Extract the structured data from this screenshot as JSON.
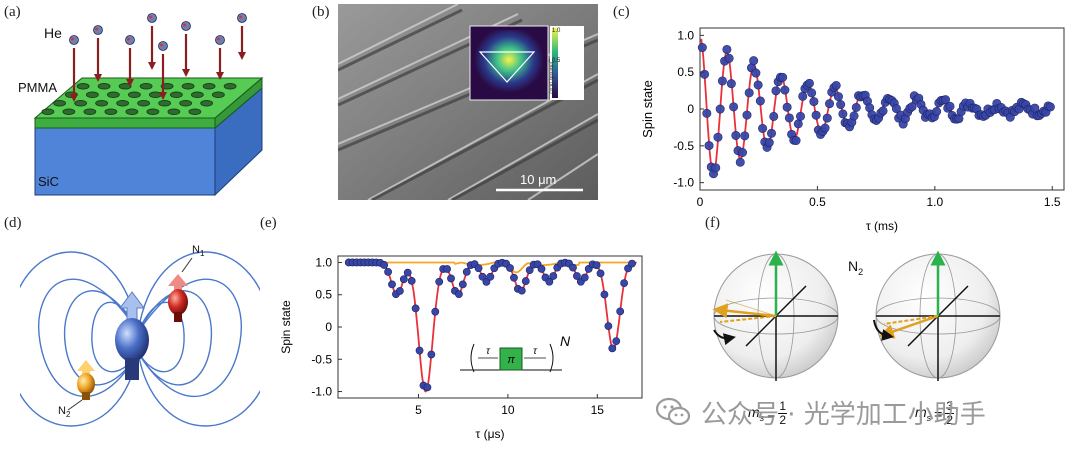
{
  "panels": {
    "a": {
      "label": "(a)",
      "he": "He",
      "pmma": "PMMA",
      "sic": "SiC"
    },
    "b": {
      "label": "(b)",
      "scale": "10 μm",
      "cbar_title": "Intensity (a.u.)",
      "cbar_ticks": [
        "1.0",
        "0.5",
        "0"
      ]
    },
    "c": {
      "label": "(c)"
    },
    "d": {
      "label": "(d)",
      "n1": "N",
      "n1_sub": "1",
      "n2": "N",
      "n2_sub": "2"
    },
    "e": {
      "label": "(e)",
      "tau_left": "τ",
      "pi": "π",
      "tau_right": "τ",
      "n": "N"
    },
    "f": {
      "label": "(f)",
      "n2": "N",
      "n2_sub": "2",
      "ms": "m",
      "ms_sub": "s",
      "eq": "=",
      "frac1_num": "1",
      "frac1_den": "2",
      "frac2_num": "3",
      "frac2_den": "2"
    }
  },
  "watermark": {
    "text": "公众号 · 光学加工小助手"
  },
  "colors": {
    "substrate": "#4f84d8",
    "pmma": "#49c24b",
    "arrow": "#8a1f1f",
    "data_point": "#3846a8",
    "fit": "#e8313a",
    "flat": "#f5a623",
    "spin_green": "#2bb24c",
    "spin_orange": "#e0a020"
  },
  "chart_data": [
    {
      "type": "scatter",
      "panel": "c",
      "ylabel": "Spin state",
      "xlabel": "τ (ms)",
      "xlim": [
        0,
        1.55
      ],
      "ylim": [
        -1.1,
        1.1
      ],
      "xticks": [
        "0",
        "0.5",
        "1.0",
        "1.5"
      ],
      "yticks": [
        "1.0",
        "0.5",
        "0",
        "-0.5",
        "-1.0"
      ],
      "xtick_values": [
        0,
        0.5,
        1.0,
        1.5
      ],
      "ytick_values": [
        1.0,
        0.5,
        0,
        -0.5,
        -1.0
      ],
      "decay_ms": 0.45,
      "period_ms": 0.115,
      "series": [
        {
          "values_from": "damped-cosine"
        }
      ]
    },
    {
      "type": "scatter",
      "panel": "e",
      "ylabel": "Spin state",
      "xlabel": "τ (μs)",
      "xlim": [
        0.5,
        17.5
      ],
      "ylim": [
        -1.1,
        1.1
      ],
      "xticks": [
        "5",
        "10",
        "15"
      ],
      "yticks": [
        "1.0",
        "0.5",
        "0",
        "-0.5",
        "-1.0"
      ],
      "xtick_values": [
        5,
        10,
        15
      ],
      "ytick_values": [
        1.0,
        0.5,
        0,
        -0.5,
        -1.0
      ],
      "dips": [
        {
          "x": 3.8,
          "depth": 0.5,
          "width": 0.45
        },
        {
          "x": 5.4,
          "depth": 2.0,
          "width": 0.55
        },
        {
          "x": 7.2,
          "depth": 0.5,
          "width": 0.45
        },
        {
          "x": 8.8,
          "depth": 0.3,
          "width": 0.4
        },
        {
          "x": 10.7,
          "depth": 0.45,
          "width": 0.45
        },
        {
          "x": 12.3,
          "depth": 0.3,
          "width": 0.4
        },
        {
          "x": 14.1,
          "depth": 0.3,
          "width": 0.4
        },
        {
          "x": 15.9,
          "depth": 1.35,
          "width": 0.5
        }
      ]
    }
  ]
}
